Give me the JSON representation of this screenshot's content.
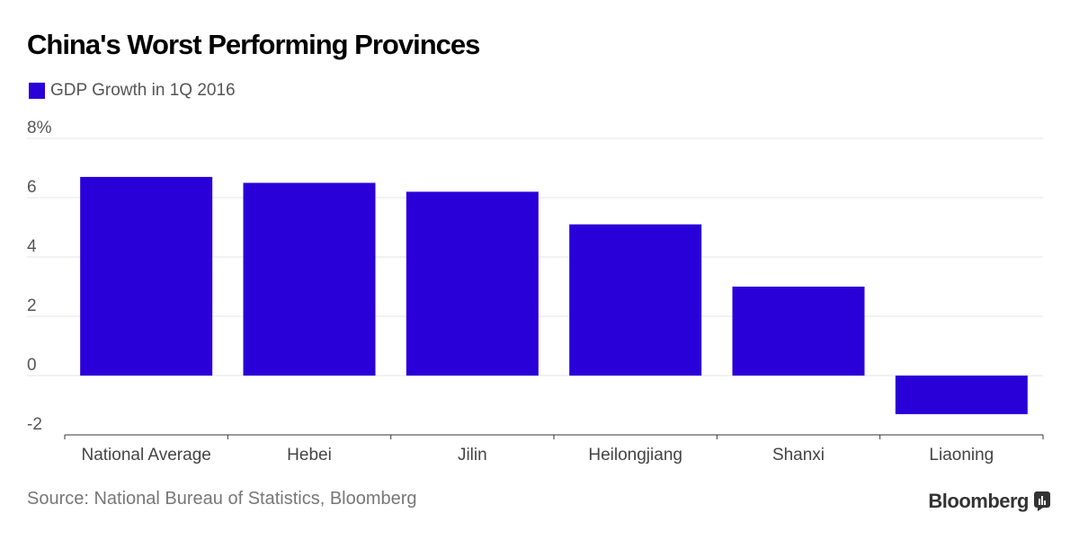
{
  "chart_data": {
    "type": "bar",
    "title": "China's Worst Performing Provinces",
    "categories": [
      "National Average",
      "Hebei",
      "Jilin",
      "Heilongjiang",
      "Shanxi",
      "Liaoning"
    ],
    "series": [
      {
        "name": "GDP Growth in 1Q 2016",
        "values": [
          6.7,
          6.5,
          6.2,
          5.1,
          3.0,
          -1.3
        ]
      }
    ],
    "yticks": [
      "8%",
      "6",
      "4",
      "2",
      "0",
      "-2"
    ],
    "ylim": [
      -2,
      8
    ],
    "xlabel": "",
    "ylabel": "",
    "grid": true,
    "legend_position": "top-left",
    "bar_color": "#2a00d9"
  },
  "footer": {
    "source": "Source: National Bureau of Statistics, Bloomberg",
    "brand": "Bloomberg"
  }
}
